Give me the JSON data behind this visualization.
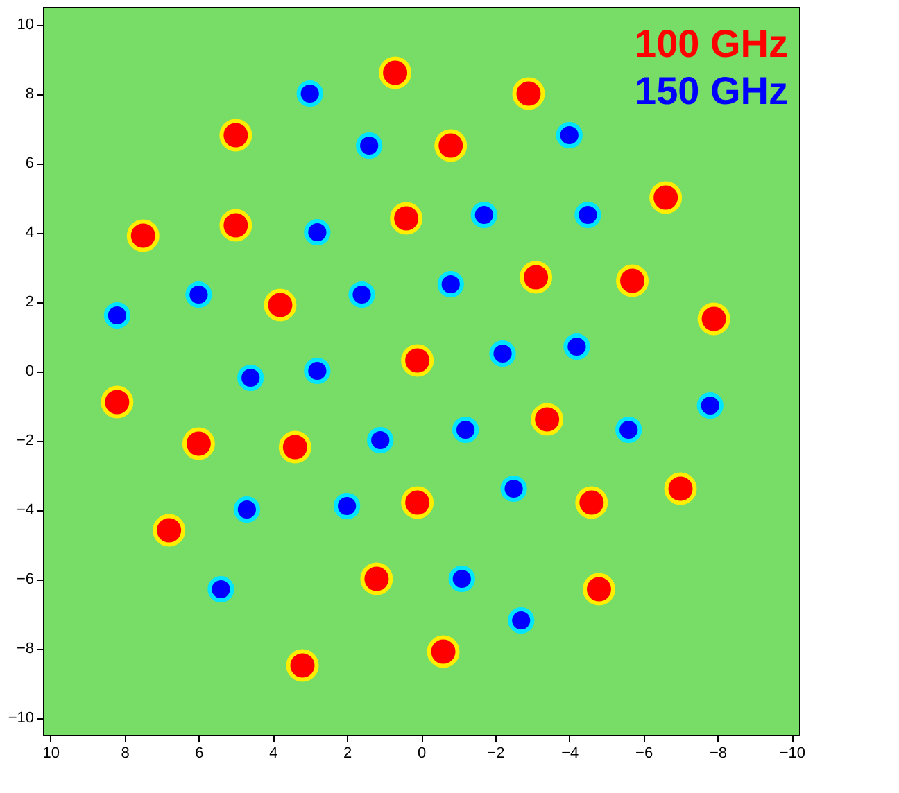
{
  "chart_data": {
    "type": "scatter",
    "xlim": [
      10.2,
      -10.2
    ],
    "ylim": [
      -10.5,
      10.5
    ],
    "xticks": [
      10,
      8,
      6,
      4,
      2,
      0,
      -2,
      -4,
      -6,
      -8,
      -10
    ],
    "yticks": [
      -10,
      -8,
      -6,
      -4,
      -2,
      0,
      2,
      4,
      6,
      8,
      10
    ],
    "grid": false,
    "legend": "top right",
    "marker": "circle",
    "series": [
      {
        "name": "100 GHz",
        "color": "#ff0000",
        "x": [
          0.7,
          -2.9,
          5.0,
          -0.8,
          -6.6,
          7.5,
          5.0,
          0.4,
          -3.1,
          -5.7,
          3.8,
          -7.9,
          0.1,
          8.2,
          6.0,
          3.4,
          -3.4,
          0.1,
          6.8,
          -4.6,
          -7.0,
          1.2,
          -4.8,
          3.2,
          -0.6
        ],
        "values": [
          8.6,
          8.0,
          6.8,
          6.5,
          5.0,
          3.9,
          4.2,
          4.4,
          2.7,
          2.6,
          1.9,
          1.5,
          0.3,
          -0.9,
          -2.1,
          -2.2,
          -1.4,
          -3.8,
          -4.6,
          -3.8,
          -3.4,
          -6.0,
          -6.3,
          -8.5,
          -8.1
        ]
      },
      {
        "name": "150 GHz",
        "color": "#0000ff",
        "x": [
          3.0,
          1.4,
          -4.0,
          2.8,
          -1.7,
          -4.5,
          8.2,
          6.0,
          1.6,
          -0.8,
          2.8,
          4.6,
          -2.2,
          -4.2,
          -7.8,
          1.1,
          -1.2,
          -5.6,
          4.7,
          2.0,
          -2.5,
          5.4,
          -1.1,
          -2.7
        ],
        "values": [
          8.0,
          6.5,
          6.8,
          4.0,
          4.5,
          4.5,
          1.6,
          2.2,
          2.2,
          2.5,
          0.0,
          -0.2,
          0.5,
          0.7,
          -1.0,
          -2.0,
          -1.7,
          -1.7,
          -4.0,
          -3.9,
          -3.4,
          -6.3,
          -6.0,
          -7.2
        ]
      }
    ]
  }
}
